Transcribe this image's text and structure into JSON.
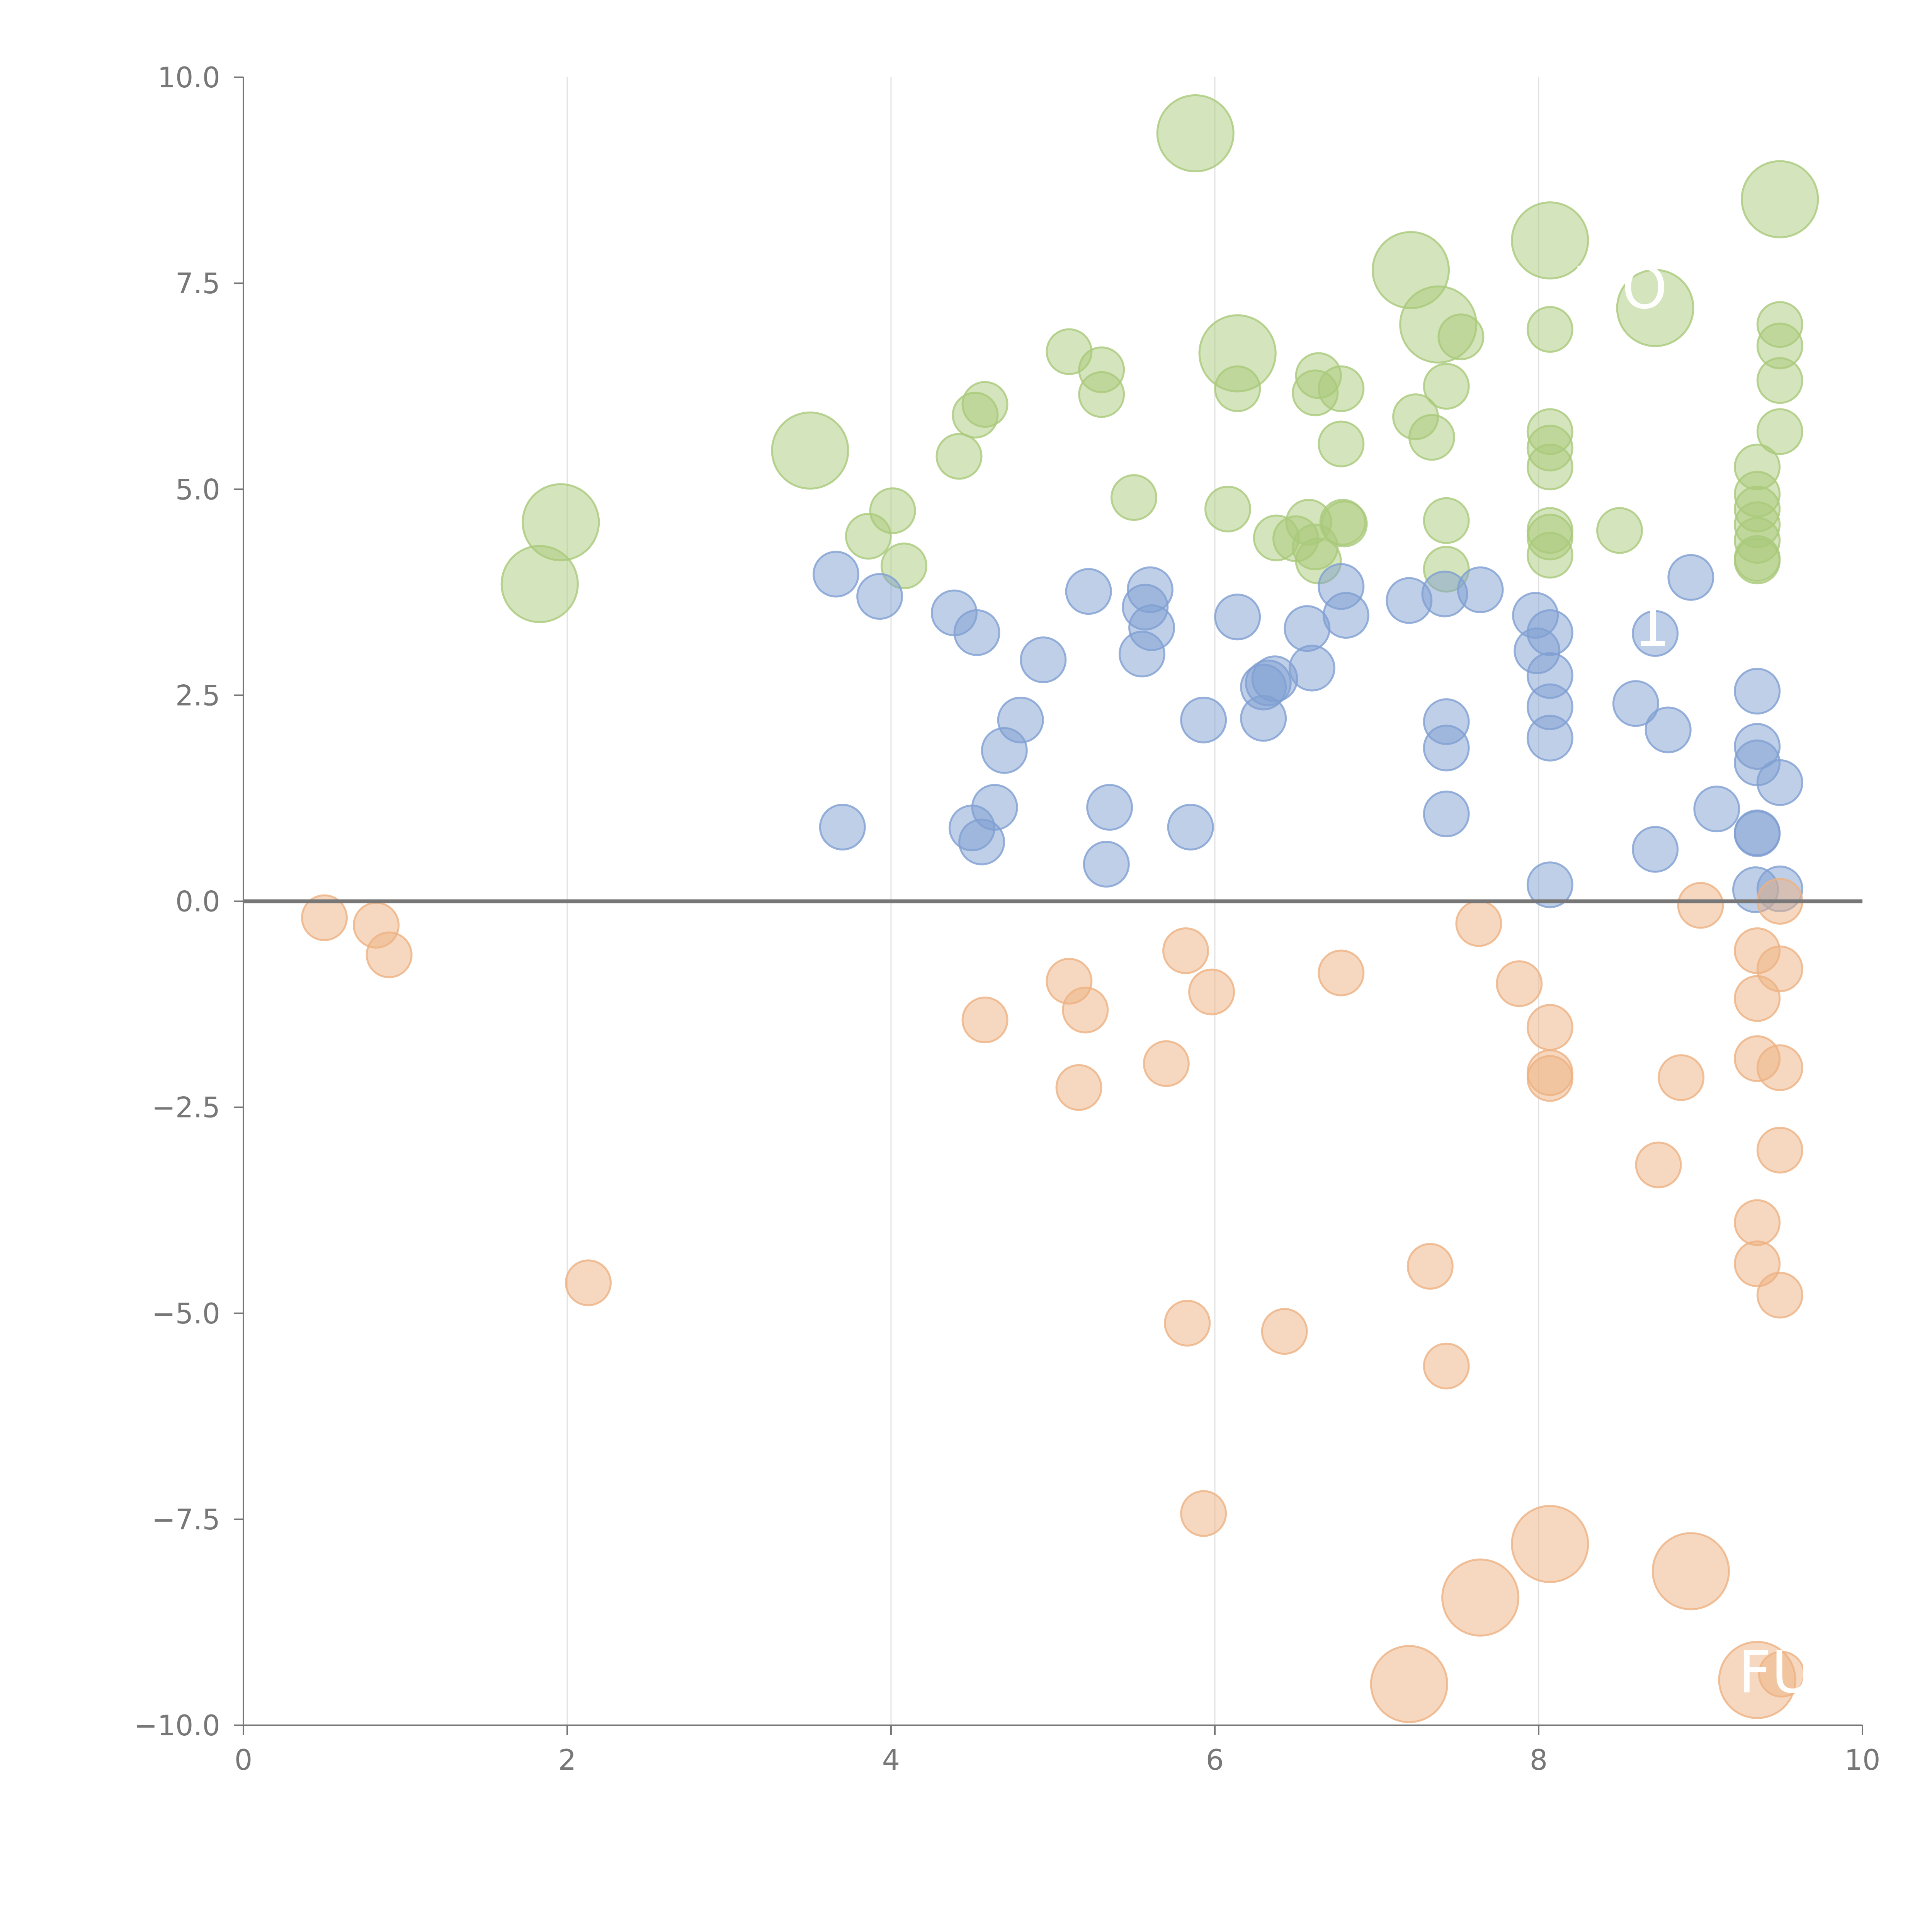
{
  "chart_data": {
    "type": "scatter",
    "title": "",
    "xlabel": "",
    "ylabel": "",
    "xlim": [
      0,
      10
    ],
    "ylim": [
      -10,
      10
    ],
    "x_ticks": [
      "0",
      "2",
      "4",
      "6",
      "8",
      "10"
    ],
    "y_ticks": [
      "10.0",
      "7.5",
      "5.0",
      "2.5",
      "0.0",
      "−2.5",
      "−5.0",
      "−7.5",
      "−10.0"
    ],
    "x_tick_values": [
      0,
      2,
      4,
      6,
      8,
      10
    ],
    "y_tick_values": [
      10,
      7.5,
      5,
      2.5,
      0,
      -2.5,
      -5,
      -7.5,
      -10
    ],
    "grid": "vertical",
    "zero_line": 0,
    "overlay_labels": [
      {
        "text": "MO",
        "x": 8.5,
        "y": 7.2
      },
      {
        "text": "1",
        "x": 8.7,
        "y": 3.1
      },
      {
        "text": "FUN",
        "x": 9.6,
        "y": -9.6
      }
    ],
    "series": [
      {
        "name": "green",
        "color": "#a9c97a",
        "points": [
          [
            1.83,
            3.85,
            1.7
          ],
          [
            1.96,
            4.6,
            1.7
          ],
          [
            3.5,
            5.47,
            1.7
          ],
          [
            3.86,
            4.43,
            1
          ],
          [
            4.01,
            4.74,
            1
          ],
          [
            4.08,
            4.07,
            1
          ],
          [
            4.42,
            5.4,
            1
          ],
          [
            4.52,
            5.9,
            1
          ],
          [
            4.58,
            6.03,
            1
          ],
          [
            5.1,
            6.67,
            1
          ],
          [
            5.3,
            6.45,
            1
          ],
          [
            5.3,
            6.15,
            1
          ],
          [
            5.5,
            4.9,
            1
          ],
          [
            5.88,
            9.32,
            1.7
          ],
          [
            6.08,
            4.76,
            1
          ],
          [
            6.14,
            6.22,
            1
          ],
          [
            6.14,
            6.65,
            1.7
          ],
          [
            6.38,
            4.41,
            1
          ],
          [
            6.5,
            4.4,
            1
          ],
          [
            6.58,
            4.6,
            1
          ],
          [
            6.62,
            6.17,
            1
          ],
          [
            6.64,
            6.38,
            1
          ],
          [
            6.62,
            4.3,
            1
          ],
          [
            6.64,
            4.13,
            1
          ],
          [
            6.78,
            6.22,
            1
          ],
          [
            6.78,
            5.55,
            1
          ],
          [
            6.79,
            4.6,
            1
          ],
          [
            6.8,
            4.58,
            1
          ],
          [
            7.21,
            7.66,
            1.7
          ],
          [
            7.24,
            5.88,
            1
          ],
          [
            7.34,
            5.63,
            1
          ],
          [
            7.38,
            7.0,
            1.7
          ],
          [
            7.43,
            6.25,
            1
          ],
          [
            7.43,
            4.62,
            1
          ],
          [
            7.43,
            4.03,
            1
          ],
          [
            7.52,
            6.85,
            1
          ],
          [
            8.07,
            8.02,
            1.7
          ],
          [
            8.07,
            6.94,
            1
          ],
          [
            8.07,
            5.7,
            1
          ],
          [
            8.07,
            5.5,
            1
          ],
          [
            8.07,
            5.27,
            1
          ],
          [
            8.07,
            4.5,
            1
          ],
          [
            8.07,
            4.42,
            1
          ],
          [
            8.07,
            4.2,
            1
          ],
          [
            8.5,
            4.5,
            1
          ],
          [
            8.72,
            7.2,
            1.7
          ],
          [
            9.35,
            5.27,
            1
          ],
          [
            9.35,
            4.94,
            1
          ],
          [
            9.35,
            4.76,
            1
          ],
          [
            9.35,
            4.57,
            1
          ],
          [
            9.35,
            4.38,
            1
          ],
          [
            9.35,
            4.16,
            1
          ],
          [
            9.35,
            4.13,
            1
          ],
          [
            9.49,
            8.52,
            1.7
          ],
          [
            9.49,
            7.0,
            1
          ],
          [
            9.49,
            6.74,
            1
          ],
          [
            9.49,
            6.32,
            1
          ],
          [
            9.49,
            5.7,
            1
          ]
        ]
      },
      {
        "name": "blue",
        "color": "#7f9fd2",
        "points": [
          [
            3.66,
            3.97,
            1
          ],
          [
            3.7,
            0.9,
            1
          ],
          [
            3.93,
            3.7,
            1
          ],
          [
            4.39,
            3.5,
            1
          ],
          [
            4.5,
            0.89,
            1
          ],
          [
            4.53,
            3.26,
            1
          ],
          [
            4.56,
            0.72,
            1
          ],
          [
            4.64,
            1.14,
            1
          ],
          [
            4.7,
            1.83,
            1
          ],
          [
            4.8,
            2.2,
            1
          ],
          [
            4.94,
            2.93,
            1
          ],
          [
            5.22,
            3.76,
            1
          ],
          [
            5.33,
            0.45,
            1
          ],
          [
            5.35,
            1.14,
            1
          ],
          [
            5.55,
            3.0,
            1
          ],
          [
            5.57,
            3.57,
            1
          ],
          [
            5.6,
            3.78,
            1
          ],
          [
            5.61,
            3.32,
            1
          ],
          [
            5.85,
            0.9,
            1
          ],
          [
            5.93,
            2.2,
            1
          ],
          [
            6.14,
            3.45,
            1
          ],
          [
            6.3,
            2.22,
            1
          ],
          [
            6.3,
            2.6,
            1
          ],
          [
            6.33,
            2.65,
            1
          ],
          [
            6.37,
            2.7,
            1
          ],
          [
            6.57,
            3.31,
            1
          ],
          [
            6.6,
            2.83,
            1
          ],
          [
            6.78,
            3.82,
            1
          ],
          [
            6.81,
            3.47,
            1
          ],
          [
            7.2,
            3.65,
            1
          ],
          [
            7.42,
            3.73,
            1
          ],
          [
            7.43,
            2.18,
            1
          ],
          [
            7.43,
            1.86,
            1
          ],
          [
            7.43,
            1.06,
            1
          ],
          [
            7.64,
            3.78,
            1
          ],
          [
            7.98,
            3.47,
            1
          ],
          [
            7.99,
            3.04,
            1
          ],
          [
            8.07,
            3.26,
            1
          ],
          [
            8.07,
            2.74,
            1
          ],
          [
            8.07,
            2.36,
            1
          ],
          [
            8.07,
            1.98,
            1
          ],
          [
            8.07,
            0.2,
            1
          ],
          [
            8.6,
            2.4,
            1
          ],
          [
            8.72,
            3.25,
            1
          ],
          [
            8.72,
            0.63,
            1
          ],
          [
            8.8,
            2.08,
            1
          ],
          [
            8.94,
            3.93,
            1
          ],
          [
            9.1,
            1.12,
            1
          ],
          [
            9.35,
            2.55,
            1
          ],
          [
            9.35,
            1.88,
            1
          ],
          [
            9.35,
            1.68,
            1
          ],
          [
            9.35,
            0.83,
            1
          ],
          [
            9.35,
            0.82,
            1
          ],
          [
            9.34,
            0.14,
            1
          ],
          [
            9.49,
            1.44,
            1
          ],
          [
            9.49,
            0.15,
            1
          ]
        ]
      },
      {
        "name": "orange",
        "color": "#eeb282",
        "points": [
          [
            0.5,
            -0.2,
            1
          ],
          [
            0.82,
            -0.29,
            1
          ],
          [
            0.9,
            -0.65,
            1
          ],
          [
            2.13,
            -4.63,
            1
          ],
          [
            4.58,
            -1.44,
            1
          ],
          [
            5.1,
            -0.97,
            1
          ],
          [
            5.16,
            -2.26,
            1
          ],
          [
            5.2,
            -1.32,
            1
          ],
          [
            5.7,
            -1.97,
            1
          ],
          [
            5.82,
            -0.6,
            1
          ],
          [
            5.83,
            -5.12,
            1
          ],
          [
            5.93,
            -7.43,
            1
          ],
          [
            5.98,
            -1.1,
            1
          ],
          [
            6.43,
            -5.22,
            1
          ],
          [
            6.78,
            -0.87,
            1
          ],
          [
            7.2,
            -9.5,
            1.7
          ],
          [
            7.33,
            -4.43,
            1
          ],
          [
            7.43,
            -5.64,
            1
          ],
          [
            7.63,
            -0.27,
            1
          ],
          [
            7.64,
            -8.45,
            1.7
          ],
          [
            7.88,
            -1.0,
            1
          ],
          [
            8.07,
            -7.8,
            1.7
          ],
          [
            8.07,
            -1.53,
            1
          ],
          [
            8.07,
            -2.08,
            1
          ],
          [
            8.07,
            -2.15,
            1
          ],
          [
            8.88,
            -2.14,
            1
          ],
          [
            8.74,
            -3.2,
            1
          ],
          [
            8.94,
            -8.13,
            1.7
          ],
          [
            9.0,
            -0.05,
            1
          ],
          [
            9.35,
            -0.6,
            1
          ],
          [
            9.35,
            -1.18,
            1
          ],
          [
            9.35,
            -1.91,
            1
          ],
          [
            9.35,
            -3.9,
            1
          ],
          [
            9.35,
            -4.4,
            1
          ],
          [
            9.35,
            -9.45,
            1.7
          ],
          [
            9.49,
            0.0,
            1
          ],
          [
            9.49,
            -0.82,
            1
          ],
          [
            9.49,
            -2.02,
            1
          ],
          [
            9.49,
            -3.02,
            1
          ],
          [
            9.49,
            -4.78,
            1
          ],
          [
            9.5,
            -9.38,
            1
          ]
        ]
      }
    ]
  }
}
